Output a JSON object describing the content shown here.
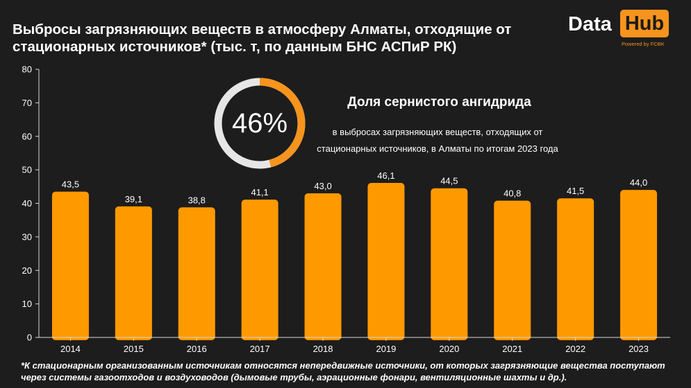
{
  "title": "Выбросы загрязняющих веществ в атмосферу Алматы, отходящие от стационарных источников* (тыс. т, по данным БНС АСПиР РК)",
  "logo": {
    "word1": "Data",
    "word2": "Hub",
    "powered": "Powered by FCBK",
    "accent_color": "#f7941d"
  },
  "highlight": {
    "percent_label": "46%",
    "percent_value": 46,
    "title": "Доля сернистого ангидрида",
    "description": "в выбросах загрязняющих веществ, отходящих от стационарных источников, в Алматы по итогам 2023 года"
  },
  "chart_data": {
    "type": "bar",
    "title": "Выбросы загрязняющих веществ в атмосферу Алматы, отходящие от стационарных источников* (тыс. т, по данным БНС АСПиР РК)",
    "xlabel": "",
    "ylabel": "",
    "categories": [
      "2014",
      "2015",
      "2016",
      "2017",
      "2018",
      "2019",
      "2020",
      "2021",
      "2022",
      "2023"
    ],
    "values": [
      43.5,
      39.1,
      38.8,
      41.1,
      43.0,
      46.1,
      44.5,
      40.8,
      41.5,
      44.0
    ],
    "value_labels": [
      "43,5",
      "39,1",
      "38,8",
      "41,1",
      "43,0",
      "46,1",
      "44,5",
      "40,8",
      "41,5",
      "44,0"
    ],
    "ylim": [
      0,
      80
    ],
    "yticks": [
      0,
      10,
      20,
      30,
      40,
      50,
      60,
      70,
      80
    ],
    "grid": false,
    "legend": "none",
    "bar_color": "#ff9900"
  },
  "footnote": "*К стационарным организованным источникам относятся непередвижные источники, от которых загрязняющие вещества поступают через системы газоотходов и воздуховодов (дымовые трубы, аэрационные фонари, вентиляционные шахты и др.)."
}
